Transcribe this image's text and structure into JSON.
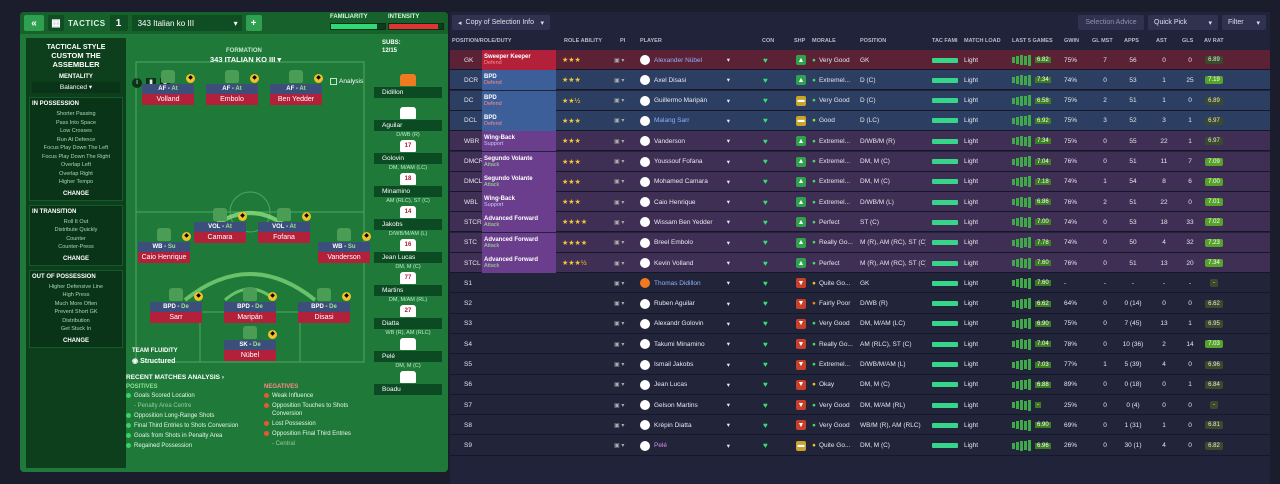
{
  "tactics_panel": {
    "tactics_label": "TACTICS",
    "slot_number": "1",
    "tactic_name": "343 Italian ko III",
    "familiarity_label": "FAMILIARITY",
    "intensity_label": "INTENSITY",
    "familiarity_level": 0.85,
    "intensity_level": 0.9,
    "sidebar": {
      "style_title": "TACTICAL STYLE",
      "style_name": "CUSTOM THE ASSEMBLER",
      "mentality_title": "MENTALITY",
      "mentality_value": "Balanced",
      "in_possession_title": "IN POSSESSION",
      "in_possession_items": [
        "Shorter Passing",
        "Pass Into Space",
        "Low Crosses",
        "Run At Defence",
        "Focus Play Down The Left",
        "Focus Play Down The Right",
        "Overlap Left",
        "Overlap Right",
        "Higher Tempo"
      ],
      "in_transition_title": "IN TRANSITION",
      "in_transition_items": [
        "Roll It Out",
        "Distribute Quickly",
        "Counter",
        "Counter-Press"
      ],
      "out_possession_title": "OUT OF POSSESSION",
      "out_possession_items": [
        "Higher Defensive Line",
        "High Press",
        "Much More Often",
        "Prevent Short GK",
        "Distribution",
        "Get Stuck In"
      ],
      "change_label": "CHANGE"
    },
    "pitch": {
      "formation_label": "FORMATION",
      "formation_name": "343 ITALIAN KO III",
      "analysis_label": "Analysis",
      "team_fluidity_label": "TEAM FLUIDITY",
      "team_fluidity_value": "Structured",
      "positions": [
        {
          "role": "AF",
          "duty": "At",
          "name": "Volland"
        },
        {
          "role": "AF",
          "duty": "At",
          "name": "Embolo"
        },
        {
          "role": "AF",
          "duty": "At",
          "name": "Ben Yedder"
        },
        {
          "role": "VOL",
          "duty": "At",
          "name": "Camara"
        },
        {
          "role": "VOL",
          "duty": "At",
          "name": "Fofana"
        },
        {
          "role": "WB",
          "duty": "Su",
          "name": "Caio Henrique"
        },
        {
          "role": "WB",
          "duty": "Su",
          "name": "Vanderson"
        },
        {
          "role": "BPD",
          "duty": "De",
          "name": "Sarr"
        },
        {
          "role": "BPD",
          "duty": "De",
          "name": "Maripán"
        },
        {
          "role": "BPD",
          "duty": "De",
          "name": "Disasi"
        },
        {
          "role": "SK",
          "duty": "De",
          "name": "Nübel"
        }
      ]
    },
    "subs_label": "SUBS:",
    "subs_count": "12/15",
    "subs": [
      {
        "name": "Didillon",
        "number": "",
        "pos": ""
      },
      {
        "name": "Aguilar",
        "number": "",
        "pos": "D/WB (R)"
      },
      {
        "name": "Golovin",
        "number": "17",
        "pos": "DM, M/AM (LC)"
      },
      {
        "name": "Minamino",
        "number": "18",
        "pos": "AM (RLC), ST (C)"
      },
      {
        "name": "Jakobs",
        "number": "14",
        "pos": "D/WB/M/AM (L)"
      },
      {
        "name": "Jean Lucas",
        "number": "16",
        "pos": "DM, M (C)"
      },
      {
        "name": "Martins",
        "number": "77",
        "pos": "DM, M/AM (RL)"
      },
      {
        "name": "Diatta",
        "number": "27",
        "pos": "WB (R), AM (RLC)"
      },
      {
        "name": "Pelé",
        "number": "",
        "pos": "DM, M (C)"
      },
      {
        "name": "Boadu",
        "number": "",
        "pos": ""
      }
    ],
    "recent": {
      "title": "RECENT MATCHES ANALYSIS",
      "positives_label": "POSITIVES",
      "negatives_label": "NEGATIVES",
      "positives": [
        "Goals Scored Location",
        "- Penalty Area Centre",
        "Opposition Long-Range Shots",
        "Final Third Entries to Shots Conversion",
        "Goals from Shots in Penalty Area",
        "Regained Possession"
      ],
      "negatives": [
        "Weak Influence",
        "Opposition Touches to Shots Conversion",
        "Lost Possession",
        "Opposition Final Third Entries",
        "- Central"
      ]
    }
  },
  "selection": {
    "view_select": "Copy of Selection Info",
    "selection_advice": "Selection Advice",
    "quick_pick": "Quick Pick",
    "filter": "Filter",
    "columns": [
      "POSITION/ROLE/DUTY",
      "ROLE ABILITY",
      "PI",
      "PLAYER",
      "CON",
      "SHP",
      "MORALE",
      "POSITION",
      "TAC FAMI",
      "MATCH LOAD",
      "LAST 5 GAMES",
      "GWIN",
      "GL MST",
      "APPS",
      "AST",
      "GLS",
      "AV RAT"
    ],
    "rows": [
      {
        "slot": "GK",
        "role": "Sweeper Keeper",
        "duty": "Defend",
        "stars": "★★★",
        "player": "Alexander Nübel",
        "morale": "Very Good",
        "position": "GK",
        "load": "Light",
        "form": "6.82",
        "gwin": "75%",
        "glmst": "7",
        "apps": "56",
        "ast": "0",
        "gls": "0",
        "avrat": "6.89",
        "shp": "up",
        "band": "red"
      },
      {
        "slot": "DCR",
        "role": "BPD",
        "duty": "Defend",
        "stars": "★★★",
        "player": "Axel Disasi",
        "morale": "Extremel...",
        "position": "D (C)",
        "load": "Light",
        "form": "7.34",
        "gwin": "74%",
        "glmst": "0",
        "apps": "53",
        "ast": "1",
        "gls": "25",
        "avrat": "7.19",
        "shp": "up",
        "band": "blue"
      },
      {
        "slot": "DC",
        "role": "BPD",
        "duty": "Defend",
        "stars": "★★½",
        "player": "Guillermo Maripán",
        "morale": "Very Good",
        "position": "D (C)",
        "load": "Light",
        "form": "6.58",
        "gwin": "75%",
        "glmst": "2",
        "apps": "51",
        "ast": "1",
        "gls": "0",
        "avrat": "6.89",
        "shp": "flat",
        "band": "blue"
      },
      {
        "slot": "DCL",
        "role": "BPD",
        "duty": "Defend",
        "stars": "★★★",
        "player": "Malang Sarr",
        "morale": "Good",
        "position": "D (LC)",
        "load": "Light",
        "form": "6.92",
        "gwin": "75%",
        "glmst": "3",
        "apps": "52",
        "ast": "3",
        "gls": "1",
        "avrat": "6.97",
        "shp": "flat",
        "band": "blue"
      },
      {
        "slot": "WBR",
        "role": "Wing-Back",
        "duty": "Support",
        "stars": "★★★",
        "player": "Vanderson",
        "morale": "Extremel...",
        "position": "D/WB/M (R)",
        "load": "Light",
        "form": "7.34",
        "gwin": "75%",
        "glmst": "0",
        "apps": "55",
        "ast": "22",
        "gls": "1",
        "avrat": "6.97",
        "shp": "up",
        "band": "purple"
      },
      {
        "slot": "DMCR",
        "role": "Segundo Volante",
        "duty": "Attack",
        "stars": "★★★",
        "player": "Youssouf Fofana",
        "morale": "Extremel...",
        "position": "DM, M (C)",
        "load": "Light",
        "form": "7.04",
        "gwin": "76%",
        "glmst": "0",
        "apps": "51",
        "ast": "11",
        "gls": "7",
        "avrat": "7.09",
        "shp": "up",
        "band": "purple"
      },
      {
        "slot": "DMCL",
        "role": "Segundo Volante",
        "duty": "Attack",
        "stars": "★★★",
        "player": "Mohamed Camara",
        "morale": "Extremel...",
        "position": "DM, M (C)",
        "load": "Light",
        "form": "7.18",
        "gwin": "74%",
        "glmst": "1",
        "apps": "54",
        "ast": "8",
        "gls": "6",
        "avrat": "7.00",
        "shp": "up",
        "band": "purple"
      },
      {
        "slot": "WBL",
        "role": "Wing-Back",
        "duty": "Support",
        "stars": "★★★",
        "player": "Caio Henrique",
        "morale": "Extremel...",
        "position": "D/WB/M (L)",
        "load": "Light",
        "form": "6.86",
        "gwin": "76%",
        "glmst": "2",
        "apps": "51",
        "ast": "22",
        "gls": "0",
        "avrat": "7.01",
        "shp": "up",
        "band": "purple"
      },
      {
        "slot": "STCR",
        "role": "Advanced Forward",
        "duty": "Attack",
        "stars": "★★★★",
        "player": "Wissam Ben Yedder",
        "morale": "Perfect",
        "position": "ST (C)",
        "load": "Light",
        "form": "7.00",
        "gwin": "74%",
        "glmst": "0",
        "apps": "53",
        "ast": "18",
        "gls": "33",
        "avrat": "7.02",
        "shp": "up",
        "band": "purple"
      },
      {
        "slot": "STC",
        "role": "Advanced Forward",
        "duty": "Attack",
        "stars": "★★★★",
        "player": "Breel Embolo",
        "morale": "Really Go...",
        "position": "M (R), AM (RC), ST (C)",
        "load": "Light",
        "form": "7.78",
        "gwin": "74%",
        "glmst": "0",
        "apps": "50",
        "ast": "4",
        "gls": "32",
        "avrat": "7.23",
        "shp": "up",
        "band": "purple"
      },
      {
        "slot": "STCL",
        "role": "Advanced Forward",
        "duty": "Attack",
        "stars": "★★★½",
        "player": "Kevin Volland",
        "morale": "Perfect",
        "position": "M (R), AM (RC), ST (C)",
        "load": "Light",
        "form": "7.60",
        "gwin": "76%",
        "glmst": "0",
        "apps": "51",
        "ast": "13",
        "gls": "20",
        "avrat": "7.34",
        "shp": "up",
        "band": "purple"
      },
      {
        "slot": "S1",
        "role": "",
        "duty": "",
        "stars": "",
        "player": "Thomas Didillon",
        "morale": "Quite Go...",
        "position": "GK",
        "load": "Light",
        "form": "7.60",
        "gwin": "-",
        "glmst": "-",
        "apps": "-",
        "ast": "-",
        "gls": "-",
        "avrat": "-",
        "shp": "down",
        "band": "none"
      },
      {
        "slot": "S2",
        "role": "",
        "duty": "",
        "stars": "",
        "player": "Ruben Aguilar",
        "morale": "Fairly Poor",
        "position": "D/WB (R)",
        "load": "Light",
        "form": "6.62",
        "gwin": "64%",
        "glmst": "0",
        "apps": "0 (14)",
        "ast": "0",
        "gls": "0",
        "avrat": "6.62",
        "shp": "down",
        "band": "none"
      },
      {
        "slot": "S3",
        "role": "",
        "duty": "",
        "stars": "",
        "player": "Alexandr Golovin",
        "morale": "Very Good",
        "position": "DM, M/AM (LC)",
        "load": "Light",
        "form": "6.90",
        "gwin": "75%",
        "glmst": "0",
        "apps": "7 (45)",
        "ast": "13",
        "gls": "1",
        "avrat": "6.95",
        "shp": "down",
        "band": "none"
      },
      {
        "slot": "S4",
        "role": "",
        "duty": "",
        "stars": "",
        "player": "Takumi Minamino",
        "morale": "Really Go...",
        "position": "AM (RLC), ST (C)",
        "load": "Light",
        "form": "7.04",
        "gwin": "78%",
        "glmst": "0",
        "apps": "10 (36)",
        "ast": "2",
        "gls": "14",
        "avrat": "7.03",
        "shp": "down",
        "band": "none"
      },
      {
        "slot": "S5",
        "role": "",
        "duty": "",
        "stars": "",
        "player": "Ismail Jakobs",
        "morale": "Extremel...",
        "position": "D/WB/M/AM (L)",
        "load": "Light",
        "form": "7.03",
        "gwin": "77%",
        "glmst": "1",
        "apps": "5 (39)",
        "ast": "4",
        "gls": "0",
        "avrat": "6.96",
        "shp": "down",
        "band": "none"
      },
      {
        "slot": "S6",
        "role": "",
        "duty": "",
        "stars": "",
        "player": "Jean Lucas",
        "morale": "Okay",
        "position": "DM, M (C)",
        "load": "Light",
        "form": "6.88",
        "gwin": "89%",
        "glmst": "0",
        "apps": "0 (18)",
        "ast": "0",
        "gls": "1",
        "avrat": "6.84",
        "shp": "down",
        "band": "none"
      },
      {
        "slot": "S7",
        "role": "",
        "duty": "",
        "stars": "",
        "player": "Gelson Martins",
        "morale": "Very Good",
        "position": "DM, M/AM (RL)",
        "load": "Light",
        "form": "-",
        "gwin": "25%",
        "glmst": "0",
        "apps": "0 (4)",
        "ast": "0",
        "gls": "0",
        "avrat": "-",
        "shp": "down",
        "band": "none"
      },
      {
        "slot": "S8",
        "role": "",
        "duty": "",
        "stars": "",
        "player": "Krépin Diatta",
        "morale": "Very Good",
        "position": "WB/M (R), AM (RLC)",
        "load": "Light",
        "form": "6.90",
        "gwin": "69%",
        "glmst": "0",
        "apps": "1 (31)",
        "ast": "1",
        "gls": "0",
        "avrat": "6.81",
        "shp": "down",
        "band": "none"
      },
      {
        "slot": "S9",
        "role": "",
        "duty": "",
        "stars": "",
        "player": "Pelé",
        "morale": "Quite Go...",
        "position": "DM, M (C)",
        "load": "Light",
        "form": "6.96",
        "gwin": "26%",
        "glmst": "0",
        "apps": "30 (1)",
        "ast": "4",
        "gls": "0",
        "avrat": "6.82",
        "shp": "flat",
        "band": "none"
      }
    ]
  },
  "colors": {
    "pitch": "#1f7a3a",
    "defend": "#b3203a",
    "accent_green": "#33e074",
    "star": "#f3c43a"
  }
}
